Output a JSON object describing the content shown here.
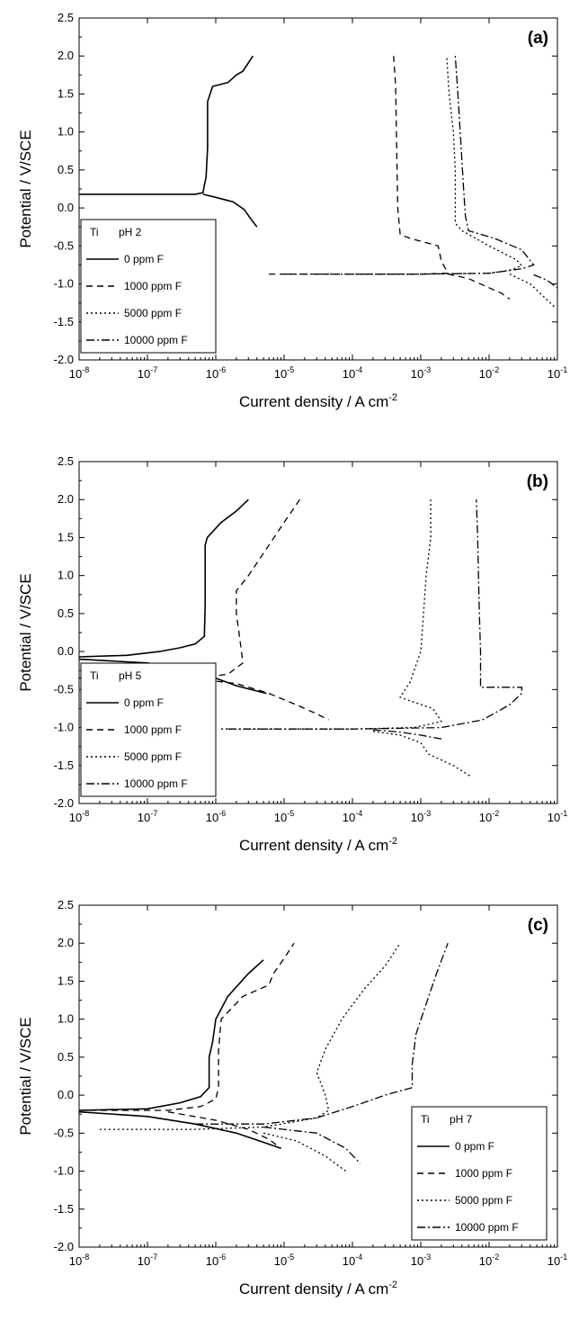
{
  "chart_data": [
    {
      "type": "line",
      "panel_label": "(a)",
      "xlabel": "Current density / A cm",
      "xlabel_sup": "-2",
      "ylabel": "Potential / V/SCE",
      "xscale": "log",
      "xlim": [
        1e-08,
        0.1
      ],
      "ylim": [
        -2.0,
        2.5
      ],
      "x_tick_labels": [
        "10-8",
        "10-7",
        "10-6",
        "10-5",
        "10-4",
        "10-3",
        "10-2",
        "10-1"
      ],
      "y_ticks": [
        "2.5",
        "2.0",
        "1.5",
        "1.0",
        "0.5",
        "0.0",
        "-0.5",
        "-1.0",
        "-1.5",
        "-2.0"
      ],
      "legend": {
        "material": "Ti",
        "condition": "pH 2",
        "placement": "bottom-left"
      },
      "series": [
        {
          "name": "0 ppm F",
          "style": "solid",
          "points": [
            [
              1e-08,
              0.18
            ],
            [
              5e-07,
              0.18
            ],
            [
              6.5e-07,
              0.2
            ],
            [
              6.8e-07,
              0.3
            ],
            [
              7.2e-07,
              0.4
            ],
            [
              7.6e-07,
              0.8
            ],
            [
              7.6e-07,
              1.4
            ],
            [
              9e-07,
              1.6
            ],
            [
              1.5e-06,
              1.65
            ],
            [
              2e-06,
              1.75
            ],
            [
              2.5e-06,
              1.8
            ],
            [
              3.5e-06,
              2.0
            ]
          ],
          "cathodic": [
            [
              6.5e-07,
              0.18
            ],
            [
              1e-06,
              0.14
            ],
            [
              1.8e-06,
              0.08
            ],
            [
              2.6e-06,
              -0.02
            ],
            [
              3.3e-06,
              -0.15
            ],
            [
              4e-06,
              -0.25
            ]
          ]
        },
        {
          "name": "1000 ppm F",
          "style": "dashed",
          "points": [
            [
              6e-06,
              -0.87
            ],
            [
              0.0001,
              -0.87
            ],
            [
              0.001,
              -0.87
            ],
            [
              0.0025,
              -0.86
            ],
            [
              0.002,
              -0.7
            ],
            [
              0.0018,
              -0.5
            ],
            [
              0.0007,
              -0.4
            ],
            [
              0.0005,
              -0.35
            ],
            [
              0.00046,
              0.0
            ],
            [
              0.00044,
              1.0
            ],
            [
              0.00043,
              1.6
            ],
            [
              0.0004,
              2.0
            ]
          ],
          "cathodic": [
            [
              0.0025,
              -0.87
            ],
            [
              0.005,
              -0.93
            ],
            [
              0.01,
              -1.05
            ],
            [
              0.015,
              -1.12
            ],
            [
              0.02,
              -1.2
            ]
          ]
        },
        {
          "name": "5000 ppm F",
          "style": "dotted",
          "points": [
            [
              0.0001,
              -0.87
            ],
            [
              0.001,
              -0.87
            ],
            [
              0.01,
              -0.86
            ],
            [
              0.02,
              -0.82
            ],
            [
              0.03,
              -0.76
            ],
            [
              0.025,
              -0.68
            ],
            [
              0.01,
              -0.5
            ],
            [
              0.004,
              -0.3
            ],
            [
              0.0032,
              -0.2
            ],
            [
              0.0032,
              0.5
            ],
            [
              0.003,
              1.0
            ],
            [
              0.0026,
              1.5
            ],
            [
              0.0024,
              2.0
            ]
          ],
          "cathodic": [
            [
              0.02,
              -0.87
            ],
            [
              0.04,
              -1.0
            ],
            [
              0.06,
              -1.15
            ],
            [
              0.09,
              -1.3
            ]
          ]
        },
        {
          "name": "10000 ppm F",
          "style": "dashdot",
          "points": [
            [
              1e-05,
              -0.87
            ],
            [
              0.0001,
              -0.87
            ],
            [
              0.001,
              -0.87
            ],
            [
              0.01,
              -0.86
            ],
            [
              0.03,
              -0.8
            ],
            [
              0.045,
              -0.75
            ],
            [
              0.03,
              -0.55
            ],
            [
              0.012,
              -0.4
            ],
            [
              0.005,
              -0.3
            ],
            [
              0.0045,
              -0.1
            ],
            [
              0.0042,
              0.3
            ],
            [
              0.0039,
              0.8
            ],
            [
              0.0035,
              1.5
            ],
            [
              0.0032,
              2.0
            ]
          ],
          "cathodic": [
            [
              0.045,
              -0.88
            ],
            [
              0.07,
              -0.95
            ],
            [
              0.1,
              -1.05
            ]
          ]
        }
      ]
    },
    {
      "type": "line",
      "panel_label": "(b)",
      "xlabel": "Current density / A cm",
      "xlabel_sup": "-2",
      "ylabel": "Potential / V/SCE",
      "xscale": "log",
      "xlim": [
        1e-08,
        0.1
      ],
      "ylim": [
        -2.0,
        2.5
      ],
      "x_tick_labels": [
        "10-8",
        "10-7",
        "10-6",
        "10-5",
        "10-4",
        "10-3",
        "10-2",
        "10-1"
      ],
      "y_ticks": [
        "2.5",
        "2.0",
        "1.5",
        "1.0",
        "0.5",
        "0.0",
        "-0.5",
        "-1.0",
        "-1.5",
        "-2.0"
      ],
      "legend": {
        "material": "Ti",
        "condition": "pH 5",
        "placement": "bottom-left"
      },
      "series": [
        {
          "name": "0 ppm F",
          "style": "solid",
          "points": [
            [
              1e-08,
              -0.07
            ],
            [
              5e-08,
              -0.05
            ],
            [
              1.5e-07,
              0.0
            ],
            [
              3e-07,
              0.05
            ],
            [
              5e-07,
              0.1
            ],
            [
              6.8e-07,
              0.2
            ],
            [
              7e-07,
              0.6
            ],
            [
              7e-07,
              1.4
            ],
            [
              7.5e-07,
              1.5
            ],
            [
              1.2e-06,
              1.7
            ],
            [
              2e-06,
              1.85
            ],
            [
              3e-06,
              2.0
            ]
          ],
          "cathodic": [
            [
              1e-08,
              -0.1
            ],
            [
              1e-07,
              -0.15
            ],
            [
              4e-07,
              -0.25
            ],
            [
              1e-06,
              -0.35
            ],
            [
              2e-06,
              -0.45
            ],
            [
              4e-06,
              -0.52
            ],
            [
              5.5e-06,
              -0.55
            ]
          ]
        },
        {
          "name": "1000 ppm F",
          "style": "dashed",
          "points": [
            [
              1e-08,
              -0.35
            ],
            [
              5e-07,
              -0.35
            ],
            [
              1.5e-06,
              -0.3
            ],
            [
              2.5e-06,
              -0.15
            ],
            [
              2.3e-06,
              0.1
            ],
            [
              2e-06,
              0.5
            ],
            [
              2e-06,
              0.8
            ],
            [
              3e-06,
              1.0
            ],
            [
              6e-06,
              1.4
            ],
            [
              1e-05,
              1.7
            ],
            [
              1.7e-05,
              2.0
            ]
          ],
          "cathodic": [
            [
              5e-07,
              -0.36
            ],
            [
              2e-06,
              -0.42
            ],
            [
              6e-06,
              -0.55
            ],
            [
              1.5e-05,
              -0.7
            ],
            [
              3e-05,
              -0.82
            ],
            [
              4.5e-05,
              -0.9
            ]
          ]
        },
        {
          "name": "5000 ppm F",
          "style": "dotted",
          "points": [
            [
              1.2e-06,
              -1.02
            ],
            [
              0.0001,
              -1.02
            ],
            [
              0.0008,
              -1.0
            ],
            [
              0.002,
              -0.92
            ],
            [
              0.0015,
              -0.75
            ],
            [
              0.0007,
              -0.65
            ],
            [
              0.0005,
              -0.6
            ],
            [
              0.0007,
              -0.4
            ],
            [
              0.001,
              0.0
            ],
            [
              0.0011,
              0.5
            ],
            [
              0.0012,
              1.0
            ],
            [
              0.0014,
              1.5
            ],
            [
              0.0014,
              2.0
            ]
          ],
          "cathodic": [
            [
              0.0002,
              -1.05
            ],
            [
              0.0005,
              -1.1
            ],
            [
              0.001,
              -1.2
            ],
            [
              0.0013,
              -1.35
            ],
            [
              0.003,
              -1.5
            ],
            [
              0.0055,
              -1.65
            ]
          ]
        },
        {
          "name": "10000 ppm F",
          "style": "dashdot",
          "points": [
            [
              1.5e-06,
              -1.02
            ],
            [
              0.0001,
              -1.02
            ],
            [
              0.002,
              -1.0
            ],
            [
              0.008,
              -0.9
            ],
            [
              0.02,
              -0.7
            ],
            [
              0.03,
              -0.55
            ],
            [
              0.03,
              -0.47
            ],
            [
              0.0075,
              -0.47
            ],
            [
              0.0075,
              0.0
            ],
            [
              0.0072,
              0.5
            ],
            [
              0.007,
              1.0
            ],
            [
              0.0068,
              1.5
            ],
            [
              0.0065,
              2.0
            ]
          ],
          "cathodic": [
            [
              0.0002,
              -1.03
            ],
            [
              0.0005,
              -1.06
            ],
            [
              0.001,
              -1.1
            ],
            [
              0.002,
              -1.15
            ]
          ]
        }
      ]
    },
    {
      "type": "line",
      "panel_label": "(c)",
      "xlabel": "Current density / A cm",
      "xlabel_sup": "-2",
      "ylabel": "Potential / V/SCE",
      "xscale": "log",
      "xlim": [
        1e-08,
        0.1
      ],
      "ylim": [
        -2.0,
        2.5
      ],
      "x_tick_labels": [
        "10-8",
        "10-7",
        "10-6",
        "10-5",
        "10-4",
        "10-3",
        "10-2",
        "10-1"
      ],
      "y_ticks": [
        "2.5",
        "2.0",
        "1.5",
        "1.0",
        "0.5",
        "0.0",
        "-0.5",
        "-1.0",
        "-1.5",
        "-2.0"
      ],
      "legend": {
        "material": "Ti",
        "condition": "pH 7",
        "placement": "bottom-right"
      },
      "series": [
        {
          "name": "0 ppm F",
          "style": "solid",
          "points": [
            [
              1e-08,
              -0.2
            ],
            [
              1e-07,
              -0.18
            ],
            [
              3e-07,
              -0.1
            ],
            [
              6e-07,
              -0.02
            ],
            [
              8e-07,
              0.1
            ],
            [
              8e-07,
              0.5
            ],
            [
              9e-07,
              0.7
            ],
            [
              1e-06,
              1.0
            ],
            [
              1.5e-06,
              1.3
            ],
            [
              3e-06,
              1.6
            ],
            [
              5e-06,
              1.78
            ]
          ],
          "cathodic": [
            [
              1e-08,
              -0.22
            ],
            [
              1e-07,
              -0.28
            ],
            [
              5e-07,
              -0.38
            ],
            [
              2e-06,
              -0.5
            ],
            [
              5e-06,
              -0.62
            ],
            [
              9e-06,
              -0.7
            ]
          ]
        },
        {
          "name": "1000 ppm F",
          "style": "dashed",
          "points": [
            [
              1e-08,
              -0.2
            ],
            [
              2e-07,
              -0.2
            ],
            [
              6e-07,
              -0.15
            ],
            [
              1e-06,
              -0.05
            ],
            [
              1.1e-06,
              0.1
            ],
            [
              1.1e-06,
              0.6
            ],
            [
              1.2e-06,
              1.0
            ],
            [
              2.5e-06,
              1.3
            ],
            [
              6e-06,
              1.45
            ],
            [
              7e-06,
              1.6
            ],
            [
              1e-05,
              1.8
            ],
            [
              1.4e-05,
              2.0
            ]
          ],
          "cathodic": [
            [
              2e-07,
              -0.22
            ],
            [
              1e-06,
              -0.33
            ],
            [
              3e-06,
              -0.45
            ],
            [
              6e-06,
              -0.58
            ],
            [
              9e-06,
              -0.7
            ]
          ]
        },
        {
          "name": "5000 ppm F",
          "style": "dotted",
          "points": [
            [
              2e-08,
              -0.45
            ],
            [
              5e-07,
              -0.45
            ],
            [
              5e-06,
              -0.42
            ],
            [
              3e-05,
              -0.3
            ],
            [
              4.5e-05,
              -0.2
            ],
            [
              4e-05,
              0.0
            ],
            [
              3e-05,
              0.3
            ],
            [
              4e-05,
              0.6
            ],
            [
              7e-05,
              1.0
            ],
            [
              0.00015,
              1.4
            ],
            [
              0.0003,
              1.7
            ],
            [
              0.0005,
              2.0
            ]
          ],
          "cathodic": [
            [
              5e-06,
              -0.5
            ],
            [
              1.5e-05,
              -0.6
            ],
            [
              4e-05,
              -0.8
            ],
            [
              8e-05,
              -1.0
            ]
          ]
        },
        {
          "name": "10000 ppm F",
          "style": "dashdot",
          "points": [
            [
              5e-07,
              -0.38
            ],
            [
              5e-06,
              -0.38
            ],
            [
              3e-05,
              -0.3
            ],
            [
              0.0001,
              -0.15
            ],
            [
              0.0003,
              0.0
            ],
            [
              0.00075,
              0.1
            ],
            [
              0.00075,
              0.4
            ],
            [
              0.00085,
              0.8
            ],
            [
              0.0012,
              1.2
            ],
            [
              0.0017,
              1.6
            ],
            [
              0.0025,
              2.0
            ]
          ],
          "cathodic": [
            [
              5e-06,
              -0.42
            ],
            [
              3e-05,
              -0.5
            ],
            [
              8e-05,
              -0.7
            ],
            [
              0.00013,
              -0.9
            ]
          ]
        }
      ]
    }
  ]
}
